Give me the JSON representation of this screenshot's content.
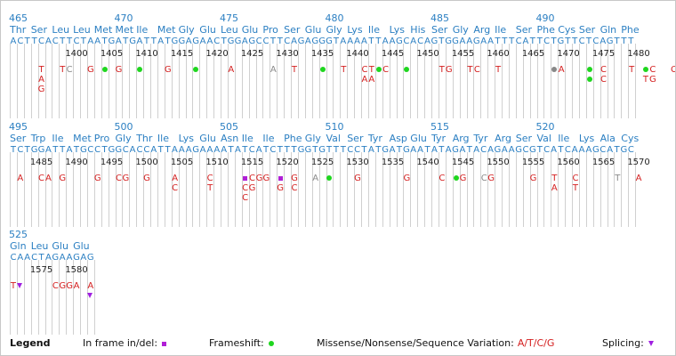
{
  "rows": [
    {
      "sequence": "ACTTCACTTCTAATGATGATTATGGAGAACTGGAGCCTTCAGAGGGTAAAATTAAGCACAGTGGAAGAATTTCATTCTGTTCTCAGTTT",
      "aa_numbers": [
        {
          "label": "465",
          "codon": 0
        },
        {
          "label": "470",
          "codon": 5
        },
        {
          "label": "475",
          "codon": 10
        },
        {
          "label": "480",
          "codon": 15
        },
        {
          "label": "485",
          "codon": 20
        },
        {
          "label": "490",
          "codon": 25
        }
      ],
      "codons": [
        "Thr",
        "Ser",
        "Leu",
        "Leu",
        "Met",
        "Met",
        "Ile",
        "Met",
        "Gly",
        "Glu",
        "Leu",
        "Glu",
        "Pro",
        "Ser",
        "Glu",
        "Gly",
        "Lys",
        "Ile",
        "Lys",
        "His",
        "Ser",
        "Gly",
        "Arg",
        "Ile",
        "Ser",
        "Phe",
        "Cys",
        "Ser",
        "Gln",
        "Phe"
      ],
      "nt_numbers": [
        {
          "label": "1400",
          "pos": 9
        },
        {
          "label": "1405",
          "pos": 14
        },
        {
          "label": "1410",
          "pos": 19
        },
        {
          "label": "1415",
          "pos": 24
        },
        {
          "label": "1420",
          "pos": 29
        },
        {
          "label": "1425",
          "pos": 34
        },
        {
          "label": "1430",
          "pos": 39
        },
        {
          "label": "1435",
          "pos": 44
        },
        {
          "label": "1440",
          "pos": 49
        },
        {
          "label": "1445",
          "pos": 54
        },
        {
          "label": "1450",
          "pos": 59
        },
        {
          "label": "1455",
          "pos": 64
        },
        {
          "label": "1460",
          "pos": 69
        },
        {
          "label": "1465",
          "pos": 74
        },
        {
          "label": "1470",
          "pos": 79
        },
        {
          "label": "1475",
          "pos": 84
        },
        {
          "label": "1480",
          "pos": 89
        }
      ],
      "variants": [
        {
          "pos": 4,
          "stack": [
            {
              "kind": "text",
              "value": "T"
            },
            {
              "kind": "text",
              "value": "A"
            },
            {
              "kind": "text",
              "value": "G"
            }
          ]
        },
        {
          "pos": 7,
          "stack": [
            {
              "kind": "text",
              "value": "T"
            }
          ]
        },
        {
          "pos": 8,
          "stack": [
            {
              "kind": "text",
              "value": "C",
              "style": "grey"
            }
          ]
        },
        {
          "pos": 11,
          "stack": [
            {
              "kind": "text",
              "value": "G"
            }
          ]
        },
        {
          "pos": 13,
          "stack": [
            {
              "kind": "frameshift"
            }
          ]
        },
        {
          "pos": 15,
          "stack": [
            {
              "kind": "text",
              "value": "G"
            }
          ]
        },
        {
          "pos": 18,
          "stack": [
            {
              "kind": "frameshift"
            }
          ]
        },
        {
          "pos": 22,
          "stack": [
            {
              "kind": "text",
              "value": "G"
            }
          ]
        },
        {
          "pos": 26,
          "stack": [
            {
              "kind": "frameshift"
            }
          ]
        },
        {
          "pos": 31,
          "stack": [
            {
              "kind": "text",
              "value": "A"
            }
          ]
        },
        {
          "pos": 37,
          "stack": [
            {
              "kind": "text",
              "value": "A",
              "style": "grey"
            }
          ]
        },
        {
          "pos": 40,
          "stack": [
            {
              "kind": "text",
              "value": "T"
            }
          ]
        },
        {
          "pos": 44,
          "stack": [
            {
              "kind": "frameshift"
            }
          ]
        },
        {
          "pos": 47,
          "stack": [
            {
              "kind": "text",
              "value": "T"
            }
          ]
        },
        {
          "pos": 50,
          "stack": [
            {
              "kind": "text",
              "value": "C"
            },
            {
              "kind": "text",
              "value": "A"
            }
          ]
        },
        {
          "pos": 51,
          "stack": [
            {
              "kind": "text",
              "value": "T"
            },
            {
              "kind": "text",
              "value": "A"
            }
          ]
        },
        {
          "pos": 52,
          "stack": [
            {
              "kind": "frameshift"
            }
          ]
        },
        {
          "pos": 53,
          "stack": [
            {
              "kind": "text",
              "value": "C"
            }
          ]
        },
        {
          "pos": 56,
          "stack": [
            {
              "kind": "frameshift"
            }
          ]
        },
        {
          "pos": 61,
          "stack": [
            {
              "kind": "text",
              "value": "T"
            }
          ]
        },
        {
          "pos": 62,
          "stack": [
            {
              "kind": "text",
              "value": "G"
            }
          ]
        },
        {
          "pos": 65,
          "stack": [
            {
              "kind": "text",
              "value": "T"
            }
          ]
        },
        {
          "pos": 66,
          "stack": [
            {
              "kind": "text",
              "value": "C"
            }
          ]
        },
        {
          "pos": 69,
          "stack": [
            {
              "kind": "text",
              "value": "T"
            }
          ]
        },
        {
          "pos": 77,
          "stack": [
            {
              "kind": "greydot"
            }
          ]
        },
        {
          "pos": 78,
          "stack": [
            {
              "kind": "text",
              "value": "A"
            }
          ]
        },
        {
          "pos": 82,
          "stack": [
            {
              "kind": "frameshift"
            },
            {
              "kind": "frameshift"
            }
          ]
        },
        {
          "pos": 84,
          "stack": [
            {
              "kind": "text",
              "value": "C"
            },
            {
              "kind": "text",
              "value": "C"
            }
          ]
        },
        {
          "pos": 88,
          "stack": [
            {
              "kind": "text",
              "value": "T"
            }
          ]
        },
        {
          "pos": 90,
          "stack": [
            {
              "kind": "frameshift"
            },
            {
              "kind": "text",
              "value": "T"
            }
          ]
        },
        {
          "pos": 91,
          "stack": [
            {
              "kind": "text",
              "value": "C"
            },
            {
              "kind": "text",
              "value": "G"
            }
          ]
        },
        {
          "pos": 94,
          "stack": [
            {
              "kind": "text",
              "value": "C"
            }
          ]
        }
      ]
    },
    {
      "sequence": "TCTGGATTATGCCTGGCACCATTAAAGAAAATATCATCTTTGGTGTTTCCTATGATGAATATAGATACAGAAGCGTCATCAAAGCATGC",
      "aa_numbers": [
        {
          "label": "495",
          "codon": 0
        },
        {
          "label": "500",
          "codon": 5
        },
        {
          "label": "505",
          "codon": 10
        },
        {
          "label": "510",
          "codon": 15
        },
        {
          "label": "515",
          "codon": 20
        },
        {
          "label": "520",
          "codon": 25
        }
      ],
      "codons": [
        "Ser",
        "Trp",
        "Ile",
        "Met",
        "Pro",
        "Gly",
        "Thr",
        "Ile",
        "Lys",
        "Glu",
        "Asn",
        "Ile",
        "Ile",
        "Phe",
        "Gly",
        "Val",
        "Ser",
        "Tyr",
        "Asp",
        "Glu",
        "Tyr",
        "Arg",
        "Tyr",
        "Arg",
        "Ser",
        "Val",
        "Ile",
        "Lys",
        "Ala",
        "Cys"
      ],
      "nt_numbers": [
        {
          "label": "1485",
          "pos": 4
        },
        {
          "label": "1490",
          "pos": 9
        },
        {
          "label": "1495",
          "pos": 14
        },
        {
          "label": "1500",
          "pos": 19
        },
        {
          "label": "1505",
          "pos": 24
        },
        {
          "label": "1510",
          "pos": 29
        },
        {
          "label": "1515",
          "pos": 34
        },
        {
          "label": "1520",
          "pos": 39
        },
        {
          "label": "1525",
          "pos": 44
        },
        {
          "label": "1530",
          "pos": 49
        },
        {
          "label": "1535",
          "pos": 54
        },
        {
          "label": "1540",
          "pos": 59
        },
        {
          "label": "1545",
          "pos": 64
        },
        {
          "label": "1550",
          "pos": 69
        },
        {
          "label": "1555",
          "pos": 74
        },
        {
          "label": "1560",
          "pos": 79
        },
        {
          "label": "1565",
          "pos": 84
        },
        {
          "label": "1570",
          "pos": 89
        }
      ],
      "variants": [
        {
          "pos": 1,
          "stack": [
            {
              "kind": "text",
              "value": "A"
            }
          ]
        },
        {
          "pos": 4,
          "stack": [
            {
              "kind": "text",
              "value": "C"
            }
          ]
        },
        {
          "pos": 5,
          "stack": [
            {
              "kind": "text",
              "value": "A"
            }
          ]
        },
        {
          "pos": 7,
          "stack": [
            {
              "kind": "text",
              "value": "G"
            }
          ]
        },
        {
          "pos": 12,
          "stack": [
            {
              "kind": "text",
              "value": "G"
            }
          ]
        },
        {
          "pos": 15,
          "stack": [
            {
              "kind": "text",
              "value": "C"
            }
          ]
        },
        {
          "pos": 16,
          "stack": [
            {
              "kind": "text",
              "value": "G"
            }
          ]
        },
        {
          "pos": 19,
          "stack": [
            {
              "kind": "text",
              "value": "G"
            }
          ]
        },
        {
          "pos": 23,
          "stack": [
            {
              "kind": "text",
              "value": "A"
            },
            {
              "kind": "text",
              "value": "C"
            }
          ]
        },
        {
          "pos": 28,
          "stack": [
            {
              "kind": "text",
              "value": "C"
            },
            {
              "kind": "text",
              "value": "T"
            }
          ]
        },
        {
          "pos": 33,
          "stack": [
            {
              "kind": "indel"
            },
            {
              "kind": "text",
              "value": "C"
            },
            {
              "kind": "text",
              "value": "C"
            }
          ]
        },
        {
          "pos": 34,
          "stack": [
            {
              "kind": "text",
              "value": "C"
            },
            {
              "kind": "text",
              "value": "G"
            }
          ]
        },
        {
          "pos": 35,
          "stack": [
            {
              "kind": "text",
              "value": "G"
            }
          ]
        },
        {
          "pos": 36,
          "stack": [
            {
              "kind": "text",
              "value": "G"
            }
          ]
        },
        {
          "pos": 38,
          "stack": [
            {
              "kind": "indel"
            },
            {
              "kind": "text",
              "value": "G"
            }
          ]
        },
        {
          "pos": 40,
          "stack": [
            {
              "kind": "text",
              "value": "G"
            },
            {
              "kind": "text",
              "value": "C"
            }
          ]
        },
        {
          "pos": 43,
          "stack": [
            {
              "kind": "text",
              "value": "A",
              "style": "grey"
            }
          ]
        },
        {
          "pos": 45,
          "stack": [
            {
              "kind": "frameshift"
            }
          ]
        },
        {
          "pos": 49,
          "stack": [
            {
              "kind": "text",
              "value": "G"
            }
          ]
        },
        {
          "pos": 56,
          "stack": [
            {
              "kind": "text",
              "value": "G"
            }
          ]
        },
        {
          "pos": 61,
          "stack": [
            {
              "kind": "text",
              "value": "C"
            }
          ]
        },
        {
          "pos": 63,
          "stack": [
            {
              "kind": "frameshift"
            }
          ]
        },
        {
          "pos": 64,
          "stack": [
            {
              "kind": "text",
              "value": "G"
            }
          ]
        },
        {
          "pos": 67,
          "stack": [
            {
              "kind": "text",
              "value": "C",
              "style": "grey"
            }
          ]
        },
        {
          "pos": 68,
          "stack": [
            {
              "kind": "text",
              "value": "G"
            }
          ]
        },
        {
          "pos": 74,
          "stack": [
            {
              "kind": "text",
              "value": "G"
            }
          ]
        },
        {
          "pos": 77,
          "stack": [
            {
              "kind": "text",
              "value": "T"
            },
            {
              "kind": "text",
              "value": "A"
            }
          ]
        },
        {
          "pos": 80,
          "stack": [
            {
              "kind": "text",
              "value": "C"
            },
            {
              "kind": "text",
              "value": "T"
            }
          ]
        },
        {
          "pos": 86,
          "stack": [
            {
              "kind": "text",
              "value": "T",
              "style": "grey"
            }
          ]
        },
        {
          "pos": 89,
          "stack": [
            {
              "kind": "text",
              "value": "A"
            }
          ]
        }
      ]
    },
    {
      "sequence": "CAACTAGAAGAG",
      "aa_numbers": [
        {
          "label": "525",
          "codon": 0
        }
      ],
      "codons": [
        "Gln",
        "Leu",
        "Glu",
        "Glu"
      ],
      "nt_numbers": [
        {
          "label": "1575",
          "pos": 4
        },
        {
          "label": "1580",
          "pos": 9
        }
      ],
      "variants": [
        {
          "pos": 0,
          "stack": [
            {
              "kind": "text",
              "value": "T"
            }
          ]
        },
        {
          "pos": 1,
          "stack": [
            {
              "kind": "splice"
            }
          ]
        },
        {
          "pos": 6,
          "stack": [
            {
              "kind": "text",
              "value": "C"
            }
          ]
        },
        {
          "pos": 7,
          "stack": [
            {
              "kind": "text",
              "value": "G"
            }
          ]
        },
        {
          "pos": 8,
          "stack": [
            {
              "kind": "text",
              "value": "G"
            }
          ]
        },
        {
          "pos": 9,
          "stack": [
            {
              "kind": "text",
              "value": "A"
            }
          ]
        },
        {
          "pos": 11,
          "stack": [
            {
              "kind": "text",
              "value": "A"
            },
            {
              "kind": "splice"
            }
          ]
        }
      ]
    }
  ],
  "legend": {
    "title": "Legend",
    "inframe_label": "In frame in/del:",
    "frameshift_label": "Frameshift:",
    "missense_label": "Missense/Nonsense/Sequence Variation:",
    "missense_sample": "A/T/C/G",
    "splicing_label": "Splicing:"
  },
  "colors": {
    "sequence": "#2b7fc2",
    "variation": "#d42020",
    "variation_secondary": "#8a8a8a",
    "frameshift": "#1fd61f",
    "inframe": "#b01fd6",
    "splicing": "#a020e0"
  }
}
